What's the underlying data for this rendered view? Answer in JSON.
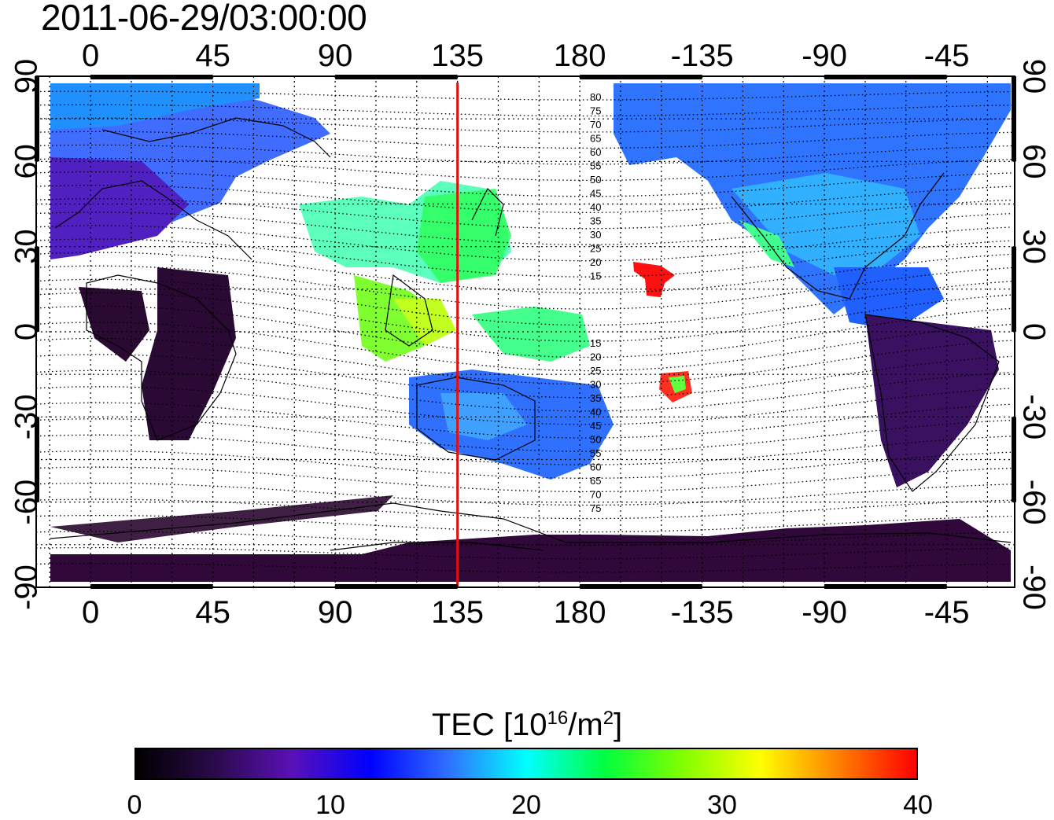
{
  "timestamp": "2011-06-29/03:00:00",
  "map": {
    "projection": "equirectangular",
    "lon_center": 160,
    "top_axis_labels": [
      "0",
      "45",
      "90",
      "135",
      "180",
      "-135",
      "-90",
      "-45"
    ],
    "bottom_axis_labels": [
      "0",
      "45",
      "90",
      "135",
      "180",
      "-135",
      "-90",
      "-45"
    ],
    "left_axis_labels": [
      "90",
      "60",
      "30",
      "0",
      "-30",
      "-60",
      "-90"
    ],
    "right_axis_labels": [
      "90",
      "60",
      "30",
      "0",
      "-30",
      "-60",
      "-90"
    ],
    "grid": "dotted",
    "marker_line": {
      "longitude": 135,
      "color": "#e01010"
    },
    "contour_labels_upper": [
      "80",
      "75",
      "70",
      "65",
      "60",
      "55",
      "50",
      "45",
      "40",
      "35",
      "30",
      "25",
      "20",
      "15"
    ],
    "contour_labels_lower": [
      "15",
      "20",
      "25",
      "30",
      "35",
      "40",
      "45",
      "50",
      "55",
      "60",
      "65",
      "70",
      "75"
    ]
  },
  "colorbar": {
    "title_prefix": "TEC  [10",
    "title_exp": "16",
    "title_mid": "/m",
    "title_exp2": "2",
    "title_suffix": "]",
    "ticks": [
      "0",
      "10",
      "20",
      "30",
      "40"
    ],
    "min": 0,
    "max": 40,
    "colors": [
      "#000000",
      "#2a0a4a",
      "#5a10b8",
      "#0000ff",
      "#3070ff",
      "#00ffff",
      "#00ff40",
      "#80ff00",
      "#ffff00",
      "#ff8000",
      "#ff0000"
    ]
  }
}
